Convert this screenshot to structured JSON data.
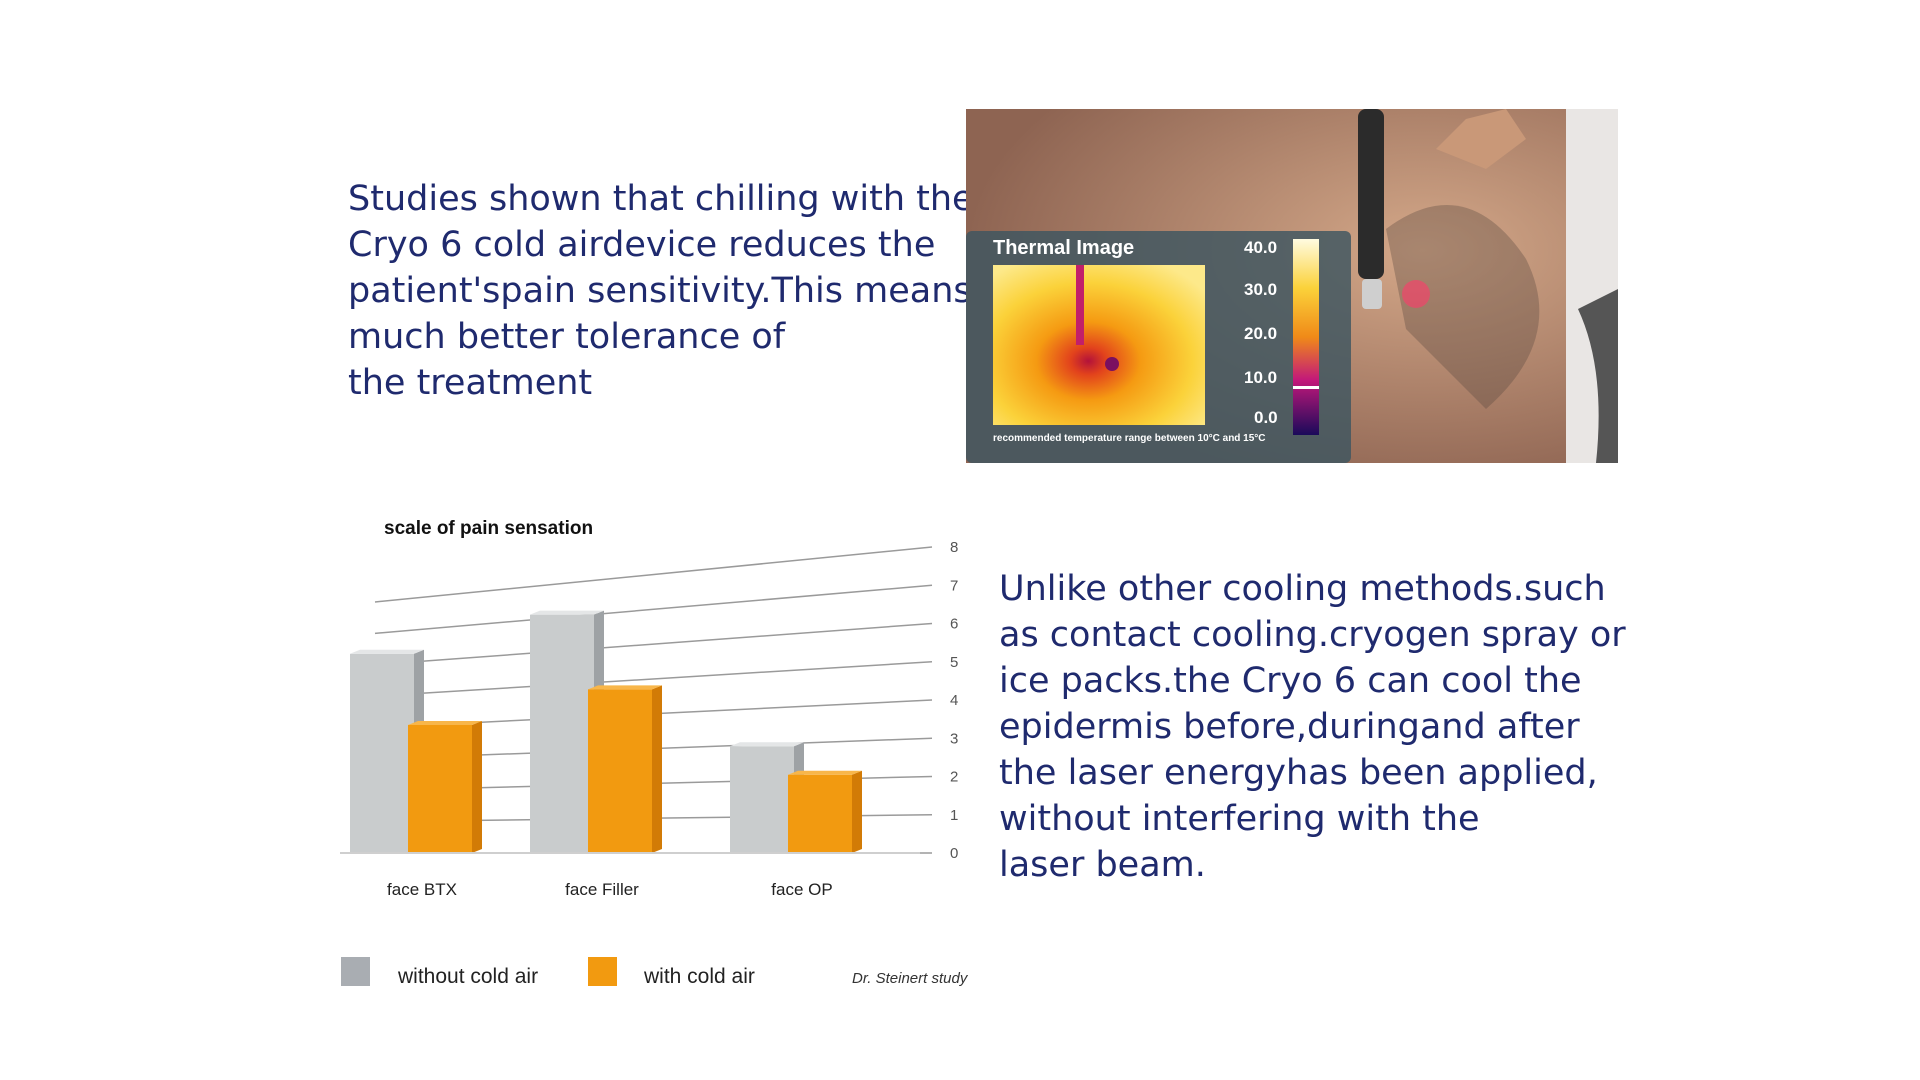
{
  "text_top": [
    "Studies shown that chilling with the",
    "Cryo 6 cold airdevice reduces the",
    "patient'spain sensitivity.This means",
    "much better tolerance of",
    "the treatment"
  ],
  "text_bottom": [
    "Unlike other cooling methods.such",
    "as contact cooling.cryogen spray or",
    "ice packs.the Cryo 6 can cool the",
    "epidermis before,duringand after",
    "the laser energyhas been applied,",
    "without interfering with the",
    "laser beam."
  ],
  "thermal": {
    "title": "Thermal Image",
    "scale_labels": [
      "40.0",
      "30.0",
      "20.0",
      "10.0",
      "0.0"
    ],
    "note": "recommended temperature range between 10°C and 15°C"
  },
  "chart_data": {
    "type": "bar",
    "title": "scale of pain sensation",
    "categories": [
      "face BTX",
      "face Filler",
      "face OP"
    ],
    "series": [
      {
        "name": "without cold air",
        "values": [
          5.6,
          6.7,
          3.0
        ],
        "color": "#b9bcbe"
      },
      {
        "name": "with cold air",
        "values": [
          3.6,
          4.6,
          2.2
        ],
        "color": "#f29a10"
      }
    ],
    "ylim": [
      0,
      8
    ],
    "yticks": [
      "0",
      "1",
      "2",
      "3",
      "4",
      "5",
      "6",
      "7",
      "8"
    ],
    "grid": true,
    "legend_position": "bottom",
    "source": "Dr. Steinert study"
  }
}
